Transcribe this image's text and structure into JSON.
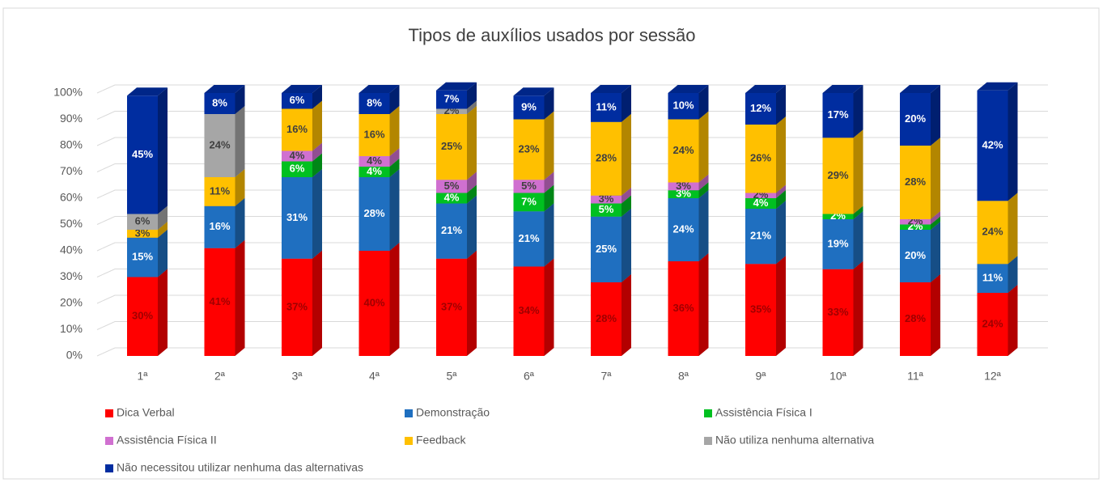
{
  "chart_data": {
    "type": "bar3d_stacked",
    "title": "Tipos de auxílios usados por sessão",
    "categories": [
      "1ª",
      "2ª",
      "3ª",
      "4ª",
      "5ª",
      "6ª",
      "7ª",
      "8ª",
      "9ª",
      "10ª",
      "11ª",
      "12ª"
    ],
    "series": [
      {
        "name": "Dica Verbal",
        "color": "#ff0000",
        "values": [
          30,
          41,
          37,
          40,
          37,
          34,
          28,
          36,
          35,
          33,
          28,
          24
        ],
        "value_labels": [
          "30%",
          "41%",
          "37%",
          "40%",
          "37%",
          "34%",
          "28%",
          "36%",
          "35%",
          "33%",
          "28%",
          "24%"
        ]
      },
      {
        "name": "Demonstração",
        "color": "#1f6fc0",
        "values": [
          15,
          16,
          31,
          28,
          21,
          21,
          25,
          24,
          21,
          19,
          20,
          11
        ],
        "value_labels": [
          "15%",
          "16%",
          "31%",
          "28%",
          "21%",
          "21%",
          "25%",
          "24%",
          "21%",
          "19%",
          "20%",
          "11%"
        ]
      },
      {
        "name": "Assistência Física I",
        "color": "#00c020",
        "values": [
          0,
          0,
          6,
          4,
          4,
          7,
          5,
          3,
          4,
          2,
          2,
          0
        ],
        "value_labels": [
          null,
          null,
          "6%",
          "4%",
          "4%",
          "7%",
          "5%",
          "3%",
          "4%",
          "2%",
          "2%",
          null
        ]
      },
      {
        "name": "Assistência Física II",
        "color": "#d070d0",
        "values": [
          0,
          0,
          4,
          4,
          5,
          5,
          3,
          3,
          2,
          0,
          2,
          0
        ],
        "value_labels": [
          null,
          null,
          "4%",
          "4%",
          "5%",
          "5%",
          "3%",
          "3%",
          "2%",
          null,
          "2%",
          null
        ]
      },
      {
        "name": "Feedback",
        "color": "#ffc000",
        "values": [
          3,
          11,
          16,
          16,
          25,
          23,
          28,
          24,
          26,
          29,
          28,
          24
        ],
        "value_labels": [
          "3%",
          "11%",
          "16%",
          "16%",
          "25%",
          "23%",
          "28%",
          "24%",
          "26%",
          "29%",
          "28%",
          "24%"
        ]
      },
      {
        "name": "Não utiliza nenhuma alternativa",
        "color": "#a6a6a6",
        "values": [
          6,
          24,
          0,
          0,
          2,
          0,
          0,
          0,
          0,
          0,
          0,
          0
        ],
        "value_labels": [
          "6%",
          "24%",
          null,
          null,
          "2%",
          null,
          null,
          null,
          null,
          null,
          null,
          null
        ]
      },
      {
        "name": "Não necessitou utilizar nenhuma das alternativas",
        "color": "#002da0",
        "values": [
          45,
          8,
          6,
          8,
          7,
          9,
          11,
          10,
          12,
          17,
          20,
          42
        ],
        "value_labels": [
          "45%",
          "8%",
          "6%",
          "8%",
          "7%",
          "9%",
          "11%",
          "10%",
          "12%",
          "17%",
          "20%",
          "42%"
        ]
      }
    ],
    "ylim": [
      0,
      100
    ],
    "yticks": [
      {
        "value": 0,
        "label": "0%"
      },
      {
        "value": 10,
        "label": "10%"
      },
      {
        "value": 20,
        "label": "20%"
      },
      {
        "value": 30,
        "label": "30%"
      },
      {
        "value": 40,
        "label": "40%"
      },
      {
        "value": 50,
        "label": "50%"
      },
      {
        "value": 60,
        "label": "60%"
      },
      {
        "value": 70,
        "label": "70%"
      },
      {
        "value": 80,
        "label": "80%"
      },
      {
        "value": 90,
        "label": "90%"
      },
      {
        "value": 100,
        "label": "100%"
      }
    ],
    "grid": true
  }
}
